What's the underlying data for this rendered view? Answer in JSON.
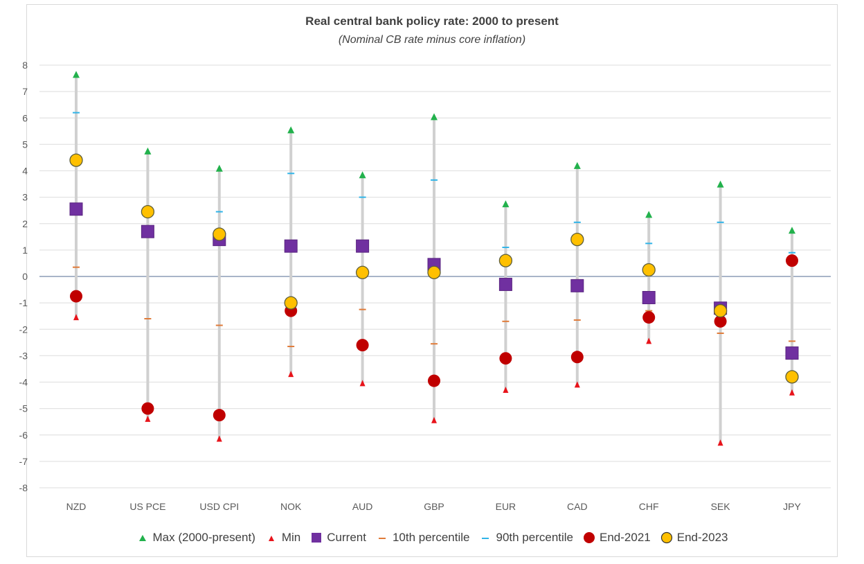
{
  "chart_data": {
    "type": "scatter",
    "title": "Real central bank policy rate: 2000 to present",
    "subtitle": "(Nominal CB rate minus core inflation)",
    "xlabel": "",
    "ylabel": "",
    "ylim": [
      -8,
      8
    ],
    "yticks": [
      8,
      7,
      6,
      5,
      4,
      3,
      2,
      1,
      0,
      -1,
      -2,
      -3,
      -4,
      -5,
      -6,
      -7,
      -8
    ],
    "grid": true,
    "legend_position": "bottom",
    "categories": [
      "NZD",
      "US PCE",
      "USD CPI",
      "NOK",
      "AUD",
      "GBP",
      "EUR",
      "CAD",
      "CHF",
      "SEK",
      "JPY"
    ],
    "series": [
      {
        "name": "Max (2000-present)",
        "color": "#22b14c",
        "marker": "triangle",
        "values": [
          7.65,
          4.75,
          4.1,
          5.55,
          3.85,
          6.05,
          2.75,
          4.2,
          2.35,
          3.5,
          1.75
        ]
      },
      {
        "name": "Min",
        "color": "#e8141b",
        "marker": "small-triangle",
        "values": [
          -1.55,
          -5.4,
          -6.15,
          -3.7,
          -4.05,
          -5.45,
          -4.3,
          -4.1,
          -2.45,
          -6.3,
          -4.4
        ]
      },
      {
        "name": "Current",
        "color": "#7030a0",
        "marker": "square",
        "values": [
          2.55,
          1.7,
          1.4,
          1.15,
          1.15,
          0.45,
          -0.3,
          -0.35,
          -0.8,
          -1.2,
          -2.9
        ]
      },
      {
        "name": "10th percentile",
        "color": "#e07b39",
        "marker": "dash",
        "values": [
          0.35,
          -1.6,
          -1.85,
          -2.65,
          -1.25,
          -2.55,
          -1.7,
          -1.65,
          -1.3,
          -2.15,
          -2.45
        ]
      },
      {
        "name": "90th percentile",
        "color": "#2fb4e8",
        "marker": "dash",
        "values": [
          6.2,
          null,
          2.45,
          3.9,
          3.0,
          3.65,
          1.1,
          2.05,
          1.25,
          2.05,
          0.9
        ]
      },
      {
        "name": "End-2021",
        "color": "#c00000",
        "marker": "circle",
        "values": [
          -0.75,
          -5.0,
          -5.25,
          -1.3,
          -2.6,
          -3.95,
          -3.1,
          -3.05,
          -1.55,
          -1.7,
          0.6
        ]
      },
      {
        "name": "End-2023",
        "color": "#ffc000",
        "marker": "circle-outlined",
        "values": [
          4.4,
          2.45,
          1.6,
          -1.0,
          0.15,
          0.15,
          0.6,
          1.4,
          0.25,
          -1.3,
          -3.8
        ]
      }
    ]
  }
}
